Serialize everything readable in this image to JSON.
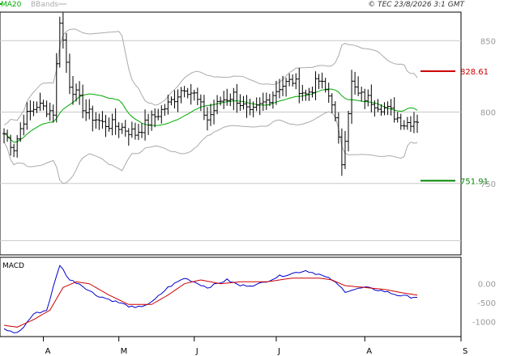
{
  "legend": {
    "ma": "MA20",
    "bands": "BBands"
  },
  "copyright": "© TEC 23/8/2026 3:1 GMT",
  "macd_label": "MACD",
  "levels": {
    "resistance": "828.61",
    "support": "751.91"
  },
  "colors": {
    "bars": "#000000",
    "ma": "#00aa00",
    "bands": "#aaaaaa",
    "resistance": "#cc0000",
    "support": "#008800",
    "macd": "#0000cc",
    "signal": "#cc0000",
    "grid": "#c8c8c8"
  },
  "chart_data": [
    {
      "type": "ohlc",
      "ylim": [
        700,
        870
      ],
      "y_ticks": [
        {
          "value": 850,
          "label": "850"
        },
        {
          "value": 800,
          "label": "800"
        },
        {
          "value": 750,
          "label": "750"
        }
      ],
      "x_labels": [
        "A",
        "M",
        "J",
        "J",
        "A",
        "S"
      ],
      "x_tick_index": [
        12,
        35,
        58,
        83,
        110,
        140
      ],
      "n_bars": 127,
      "anchors": [
        [
          0,
          785
        ],
        [
          3,
          775
        ],
        [
          6,
          795
        ],
        [
          10,
          805
        ],
        [
          15,
          800
        ],
        [
          17,
          865
        ],
        [
          20,
          820
        ],
        [
          25,
          800
        ],
        [
          30,
          792
        ],
        [
          35,
          790
        ],
        [
          40,
          785
        ],
        [
          45,
          795
        ],
        [
          50,
          805
        ],
        [
          55,
          818
        ],
        [
          58,
          812
        ],
        [
          62,
          795
        ],
        [
          66,
          808
        ],
        [
          70,
          812
        ],
        [
          75,
          798
        ],
        [
          80,
          808
        ],
        [
          84,
          818
        ],
        [
          88,
          822
        ],
        [
          92,
          812
        ],
        [
          96,
          822
        ],
        [
          100,
          808
        ],
        [
          103,
          765
        ],
        [
          106,
          820
        ],
        [
          108,
          812
        ],
        [
          112,
          808
        ],
        [
          118,
          800
        ],
        [
          122,
          792
        ],
        [
          126,
          795
        ]
      ],
      "overlays": [
        "MA20",
        "BBands"
      ],
      "lines": [
        {
          "label": "828.61",
          "value": 828.61
        },
        {
          "label": "751.91",
          "value": 751.91
        }
      ]
    },
    {
      "type": "line",
      "name": "MACD",
      "ylim": [
        -1400,
        700
      ],
      "y_ticks": [
        {
          "value": 0,
          "label": "0.00"
        },
        {
          "value": -500,
          "label": "-500"
        },
        {
          "value": -1000,
          "label": "-1000"
        }
      ],
      "series": [
        {
          "anchors": [
            [
              0,
              -1200
            ],
            [
              3,
              -1300
            ],
            [
              5,
              -1250
            ],
            [
              9,
              -800
            ],
            [
              13,
              -700
            ],
            [
              17,
              500
            ],
            [
              20,
              100
            ],
            [
              23,
              0
            ],
            [
              28,
              -300
            ],
            [
              35,
              -500
            ],
            [
              40,
              -650
            ],
            [
              45,
              -500
            ],
            [
              50,
              -100
            ],
            [
              55,
              150
            ],
            [
              58,
              50
            ],
            [
              62,
              -100
            ],
            [
              68,
              100
            ],
            [
              72,
              -50
            ],
            [
              77,
              -30
            ],
            [
              84,
              200
            ],
            [
              92,
              350
            ],
            [
              96,
              250
            ],
            [
              100,
              100
            ],
            [
              104,
              -200
            ],
            [
              110,
              -100
            ],
            [
              116,
              -200
            ],
            [
              120,
              -300
            ],
            [
              124,
              -350
            ],
            [
              126,
              -350
            ]
          ]
        },
        {
          "anchors": [
            [
              0,
              -1100
            ],
            [
              4,
              -1150
            ],
            [
              9,
              -950
            ],
            [
              14,
              -700
            ],
            [
              18,
              -100
            ],
            [
              22,
              50
            ],
            [
              26,
              0
            ],
            [
              32,
              -300
            ],
            [
              38,
              -550
            ],
            [
              45,
              -550
            ],
            [
              50,
              -300
            ],
            [
              55,
              0
            ],
            [
              60,
              100
            ],
            [
              66,
              0
            ],
            [
              72,
              50
            ],
            [
              80,
              50
            ],
            [
              88,
              150
            ],
            [
              96,
              150
            ],
            [
              100,
              100
            ],
            [
              104,
              -50
            ],
            [
              110,
              -100
            ],
            [
              116,
              -150
            ],
            [
              122,
              -250
            ],
            [
              126,
              -300
            ]
          ]
        }
      ]
    }
  ]
}
